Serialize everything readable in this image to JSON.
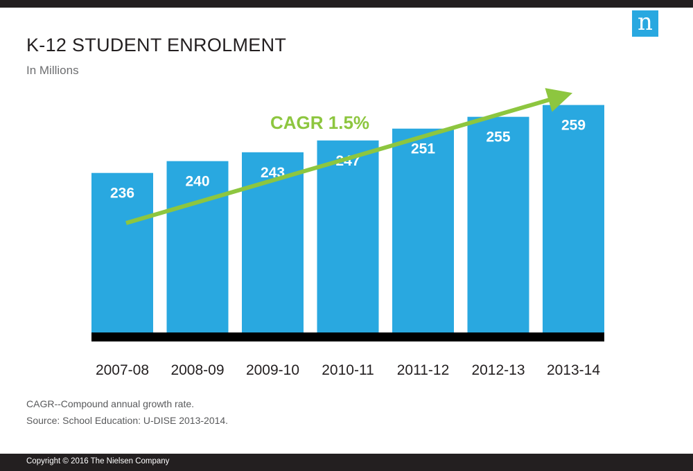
{
  "logo": {
    "letter": "n"
  },
  "header": {
    "title": "K-12 STUDENT ENROLMENT",
    "subtitle": "In Millions"
  },
  "chart_data": {
    "type": "bar",
    "title": "K-12 STUDENT ENROLMENT",
    "subtitle": "In Millions",
    "xlabel": "",
    "ylabel": "",
    "categories": [
      "2007-08",
      "2008-09",
      "2009-10",
      "2010-11",
      "2011-12",
      "2012-13",
      "2013-14"
    ],
    "values": [
      236,
      240,
      243,
      247,
      251,
      255,
      259
    ],
    "ylim": [
      182,
      265
    ],
    "grid": false,
    "legend": "none",
    "annotation": "CAGR 1.5%",
    "colors": {
      "bar": "#29a8e0",
      "axis": "#000000",
      "trend_arrow": "#8dc63f",
      "annotation": "#8dc63f",
      "data_label": "#ffffff"
    }
  },
  "notes": [
    "CAGR--Compound annual growth rate.",
    "Source: School Education: U-DISE 2013-2014."
  ],
  "footer": {
    "copyright": "Copyright © 2016 The Nielsen Company"
  }
}
